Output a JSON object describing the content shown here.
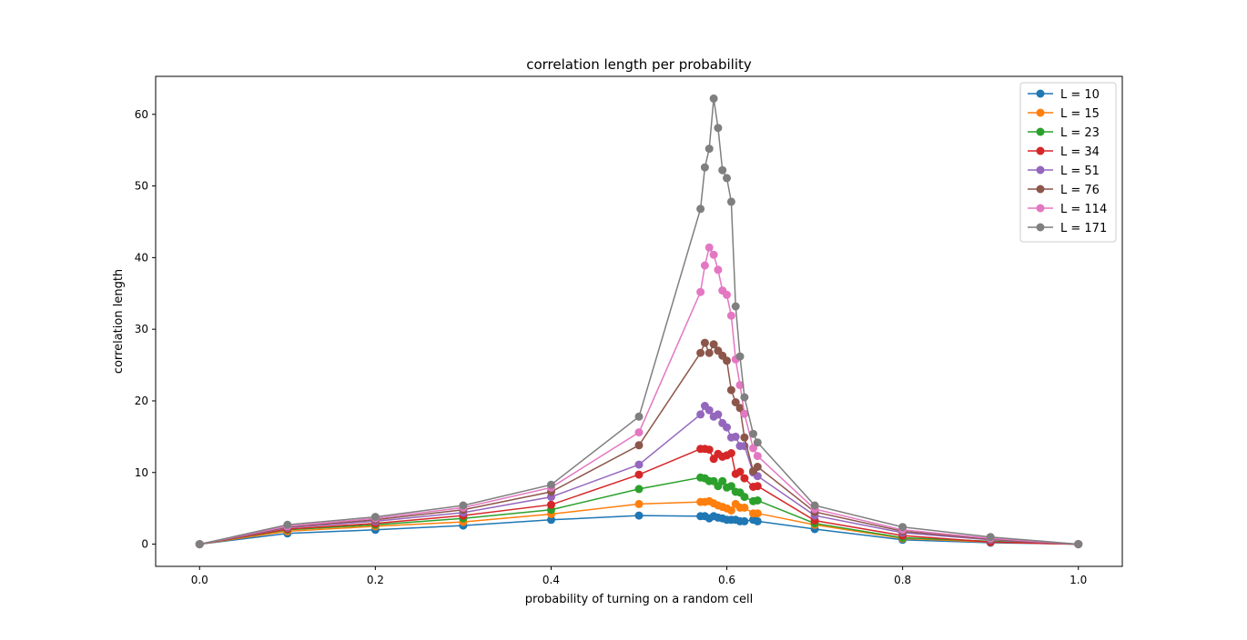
{
  "chart_data": {
    "type": "line",
    "title": "correlation length per probability",
    "xlabel": "probability of turning on a random cell",
    "ylabel": "correlation length",
    "xlim": [
      -0.05,
      1.05
    ],
    "ylim": [
      -3.1,
      65.3
    ],
    "xticks": [
      "0.0",
      "0.2",
      "0.4",
      "0.6",
      "0.8",
      "1.0"
    ],
    "yticks": [
      "0",
      "10",
      "20",
      "30",
      "40",
      "50",
      "60"
    ],
    "grid": false,
    "legend_position": "top-right",
    "series": [
      {
        "name": "L = 10",
        "color": "#1f77b4",
        "x": [
          0.0,
          0.1,
          0.2,
          0.3,
          0.4,
          0.5,
          0.57,
          0.575,
          0.58,
          0.585,
          0.59,
          0.595,
          0.6,
          0.605,
          0.61,
          0.615,
          0.62,
          0.63,
          0.635,
          0.7,
          0.8,
          0.9,
          1.0
        ],
        "y": [
          0.0,
          1.5,
          2.0,
          2.6,
          3.4,
          4.0,
          3.9,
          3.9,
          3.6,
          3.9,
          3.7,
          3.6,
          3.4,
          3.4,
          3.4,
          3.2,
          3.2,
          3.4,
          3.2,
          2.1,
          0.6,
          0.2,
          0.0
        ]
      },
      {
        "name": "L = 15",
        "color": "#ff7f0e",
        "x": [
          0.0,
          0.1,
          0.2,
          0.3,
          0.4,
          0.5,
          0.57,
          0.575,
          0.58,
          0.585,
          0.59,
          0.595,
          0.6,
          0.605,
          0.61,
          0.615,
          0.62,
          0.63,
          0.635,
          0.7,
          0.8,
          0.9,
          1.0
        ],
        "y": [
          0.0,
          1.8,
          2.5,
          3.1,
          4.2,
          5.6,
          5.9,
          5.9,
          6.0,
          5.7,
          5.4,
          5.2,
          5.0,
          4.7,
          5.6,
          5.1,
          5.1,
          4.3,
          4.3,
          2.7,
          0.8,
          0.3,
          0.0
        ]
      },
      {
        "name": "L = 23",
        "color": "#2ca02c",
        "x": [
          0.0,
          0.1,
          0.2,
          0.3,
          0.4,
          0.5,
          0.57,
          0.575,
          0.58,
          0.585,
          0.59,
          0.595,
          0.6,
          0.605,
          0.61,
          0.615,
          0.62,
          0.63,
          0.635,
          0.7,
          0.8,
          0.9,
          1.0
        ],
        "y": [
          0.0,
          2.0,
          2.7,
          3.6,
          4.8,
          7.7,
          9.3,
          9.2,
          8.8,
          8.8,
          8.1,
          8.8,
          7.9,
          8.1,
          7.3,
          7.2,
          6.6,
          6.0,
          6.1,
          2.9,
          0.9,
          0.4,
          0.0
        ]
      },
      {
        "name": "L = 34",
        "color": "#d62728",
        "x": [
          0.0,
          0.1,
          0.2,
          0.3,
          0.4,
          0.5,
          0.57,
          0.575,
          0.58,
          0.585,
          0.59,
          0.595,
          0.6,
          0.605,
          0.61,
          0.615,
          0.62,
          0.63,
          0.635,
          0.7,
          0.8,
          0.9,
          1.0
        ],
        "y": [
          0.0,
          2.1,
          2.9,
          4.0,
          5.5,
          9.7,
          13.3,
          13.3,
          13.2,
          11.9,
          12.6,
          12.2,
          12.4,
          12.7,
          9.8,
          10.1,
          9.2,
          8.0,
          8.1,
          3.3,
          1.2,
          0.3,
          0.0
        ]
      },
      {
        "name": "L = 51",
        "color": "#9467bd",
        "x": [
          0.0,
          0.1,
          0.2,
          0.3,
          0.4,
          0.5,
          0.57,
          0.575,
          0.58,
          0.585,
          0.59,
          0.595,
          0.6,
          0.605,
          0.61,
          0.615,
          0.62,
          0.63,
          0.635,
          0.7,
          0.8,
          0.9,
          1.0
        ],
        "y": [
          0.0,
          2.3,
          3.2,
          4.4,
          6.6,
          11.1,
          18.1,
          19.3,
          18.7,
          17.8,
          18.1,
          16.9,
          16.3,
          14.9,
          15.0,
          13.7,
          13.7,
          10.0,
          9.5,
          4.0,
          1.6,
          0.6,
          0.0
        ]
      },
      {
        "name": "L = 76",
        "color": "#8c564b",
        "x": [
          0.0,
          0.1,
          0.2,
          0.3,
          0.4,
          0.5,
          0.57,
          0.575,
          0.58,
          0.585,
          0.59,
          0.595,
          0.6,
          0.605,
          0.61,
          0.615,
          0.62,
          0.63,
          0.635,
          0.7,
          0.8,
          0.9,
          1.0
        ],
        "y": [
          0.0,
          2.4,
          3.4,
          4.8,
          7.3,
          13.8,
          26.7,
          28.1,
          26.7,
          27.9,
          27.0,
          26.3,
          25.6,
          21.5,
          19.8,
          19.0,
          14.9,
          10.2,
          10.8,
          4.5,
          1.8,
          0.7,
          0.0
        ]
      },
      {
        "name": "L = 114",
        "color": "#e377c2",
        "x": [
          0.0,
          0.1,
          0.2,
          0.3,
          0.4,
          0.5,
          0.57,
          0.575,
          0.58,
          0.585,
          0.59,
          0.595,
          0.6,
          0.605,
          0.61,
          0.615,
          0.62,
          0.63,
          0.635,
          0.7,
          0.8,
          0.9,
          1.0
        ],
        "y": [
          0.0,
          2.5,
          3.6,
          5.1,
          7.9,
          15.6,
          35.2,
          38.9,
          41.4,
          40.4,
          38.3,
          35.4,
          34.8,
          31.9,
          25.8,
          22.2,
          18.2,
          13.4,
          12.3,
          4.9,
          2.0,
          0.8,
          0.0
        ]
      },
      {
        "name": "L = 171",
        "color": "#7f7f7f",
        "x": [
          0.0,
          0.1,
          0.2,
          0.3,
          0.4,
          0.5,
          0.57,
          0.575,
          0.58,
          0.585,
          0.59,
          0.595,
          0.6,
          0.605,
          0.61,
          0.615,
          0.62,
          0.63,
          0.635,
          0.7,
          0.8,
          0.9,
          1.0
        ],
        "y": [
          0.0,
          2.7,
          3.8,
          5.4,
          8.3,
          17.8,
          46.8,
          52.6,
          55.2,
          62.2,
          58.1,
          52.2,
          51.1,
          47.8,
          33.2,
          26.2,
          20.5,
          15.4,
          14.2,
          5.4,
          2.4,
          1.0,
          0.0
        ]
      }
    ]
  }
}
